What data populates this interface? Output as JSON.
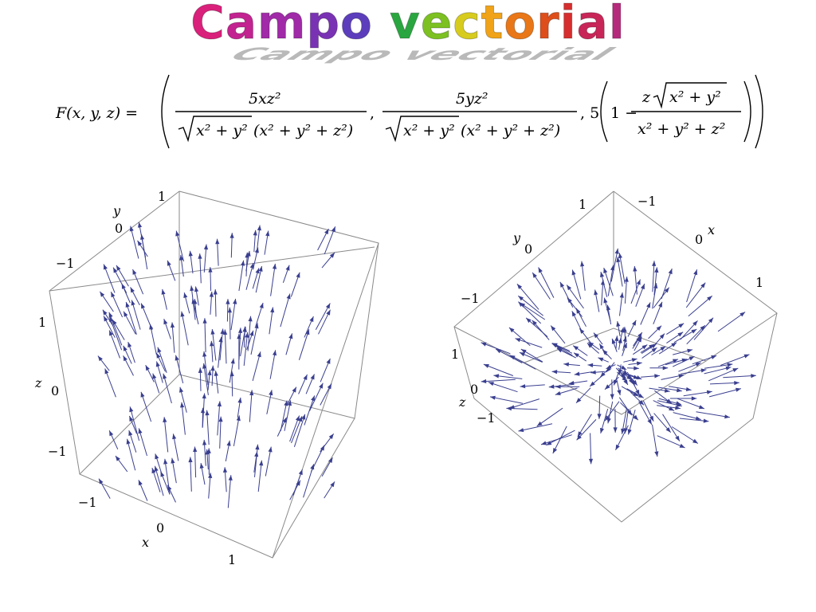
{
  "title": {
    "text": "Campo vectorial",
    "letter_colors": [
      "#d9207a",
      "#c32390",
      "#a02aa8",
      "#7a32b4",
      "#5c3ebc",
      "#ffffff",
      "#2aa640",
      "#7cc121",
      "#d7cc1d",
      "#f0a318",
      "#e97717",
      "#de4e1a",
      "#d62e2e",
      "#c82658",
      "#b62a7c"
    ]
  },
  "formula": {
    "lhs": "F(x, y, z) =",
    "c1_num": "5xz²",
    "c1_den_sqrt": "x² + y²",
    "c1_den_par": "(x² + y² + z²)",
    "comma": ",",
    "c2_num": "5yz²",
    "c2_den_sqrt": "x² + y²",
    "c2_den_par": "(x² + y² + z²)",
    "c3_prefix": ", 5",
    "c3_one": "1 −",
    "c3_num_z": "z",
    "c3_num_sqrt": "x² + y²",
    "c3_den": "x² + y² + z²"
  },
  "plot_left": {
    "y_axis": {
      "label": "y",
      "ticks": [
        "1",
        "0",
        "−1"
      ]
    },
    "z_axis": {
      "label": "z",
      "ticks": [
        "1",
        "0",
        "−1"
      ]
    },
    "x_axis": {
      "label": "x",
      "ticks": [
        "−1",
        "0",
        "1"
      ]
    }
  },
  "plot_right": {
    "y_axis": {
      "label": "y",
      "ticks": [
        "1",
        "0",
        "−1"
      ]
    },
    "x_axis": {
      "label": "x",
      "ticks": [
        "−1",
        "0",
        "1"
      ]
    },
    "z_axis": {
      "label": "z",
      "ticks": [
        "1",
        "0",
        "−1"
      ]
    }
  },
  "colors": {
    "arrow": "#3a3f8f",
    "box": "#8a8a8a"
  }
}
